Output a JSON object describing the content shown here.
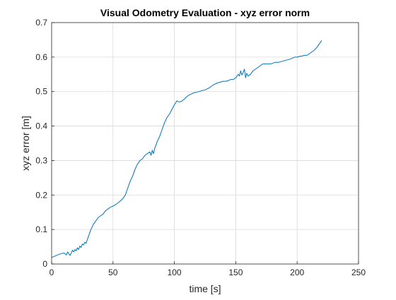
{
  "chart_data": {
    "type": "line",
    "title": "Visual Odometry Evaluation - xyz error norm",
    "xlabel": "time [s]",
    "ylabel": "xyz error [m]",
    "xlim": [
      0,
      250
    ],
    "ylim": [
      0,
      0.7
    ],
    "xticks": [
      "0",
      "50",
      "100",
      "150",
      "200",
      "250"
    ],
    "yticks": [
      "0",
      "0.1",
      "0.2",
      "0.3",
      "0.4",
      "0.5",
      "0.6",
      "0.7"
    ],
    "grid": true,
    "colors": {
      "series": "#0072BD",
      "axis": "#262626",
      "grid": "#d9d9d9"
    },
    "series": [
      {
        "x": [
          0,
          2,
          4,
          6,
          8,
          10,
          12,
          13,
          14,
          15,
          16,
          17,
          18,
          19,
          20,
          21,
          22,
          23,
          24,
          25,
          26,
          27,
          28,
          30,
          32,
          34,
          36,
          38,
          40,
          42,
          44,
          46,
          48,
          50,
          52,
          55,
          58,
          60,
          62,
          64,
          66,
          68,
          70,
          72,
          74,
          76,
          78,
          80,
          81,
          82,
          83,
          84,
          85,
          86,
          88,
          90,
          92,
          94,
          96,
          98,
          100,
          102,
          104,
          106,
          108,
          110,
          112,
          114,
          116,
          118,
          120,
          122,
          125,
          128,
          130,
          132,
          135,
          138,
          140,
          142,
          144,
          146,
          148,
          150,
          152,
          153,
          154,
          155,
          156,
          157,
          158,
          159,
          160,
          162,
          164,
          166,
          168,
          170,
          172,
          175,
          178,
          180,
          182,
          185,
          188,
          190,
          192,
          195,
          198,
          200,
          202,
          204,
          206,
          208,
          210,
          212,
          214,
          216,
          218,
          220
        ],
        "y": [
          0.019,
          0.022,
          0.025,
          0.028,
          0.03,
          0.032,
          0.026,
          0.035,
          0.03,
          0.025,
          0.032,
          0.04,
          0.035,
          0.042,
          0.038,
          0.047,
          0.042,
          0.052,
          0.048,
          0.058,
          0.055,
          0.063,
          0.06,
          0.08,
          0.1,
          0.115,
          0.125,
          0.135,
          0.14,
          0.145,
          0.155,
          0.16,
          0.165,
          0.168,
          0.172,
          0.18,
          0.19,
          0.2,
          0.22,
          0.24,
          0.255,
          0.275,
          0.29,
          0.3,
          0.305,
          0.315,
          0.32,
          0.325,
          0.315,
          0.33,
          0.32,
          0.335,
          0.345,
          0.355,
          0.37,
          0.39,
          0.41,
          0.425,
          0.435,
          0.448,
          0.462,
          0.473,
          0.47,
          0.472,
          0.478,
          0.485,
          0.49,
          0.493,
          0.497,
          0.498,
          0.5,
          0.502,
          0.505,
          0.51,
          0.515,
          0.52,
          0.525,
          0.528,
          0.53,
          0.53,
          0.532,
          0.535,
          0.535,
          0.54,
          0.55,
          0.545,
          0.56,
          0.548,
          0.555,
          0.565,
          0.54,
          0.553,
          0.545,
          0.55,
          0.56,
          0.565,
          0.57,
          0.575,
          0.58,
          0.58,
          0.58,
          0.582,
          0.585,
          0.585,
          0.588,
          0.59,
          0.592,
          0.595,
          0.6,
          0.6,
          0.602,
          0.603,
          0.605,
          0.605,
          0.61,
          0.615,
          0.62,
          0.628,
          0.638,
          0.648
        ]
      }
    ]
  }
}
